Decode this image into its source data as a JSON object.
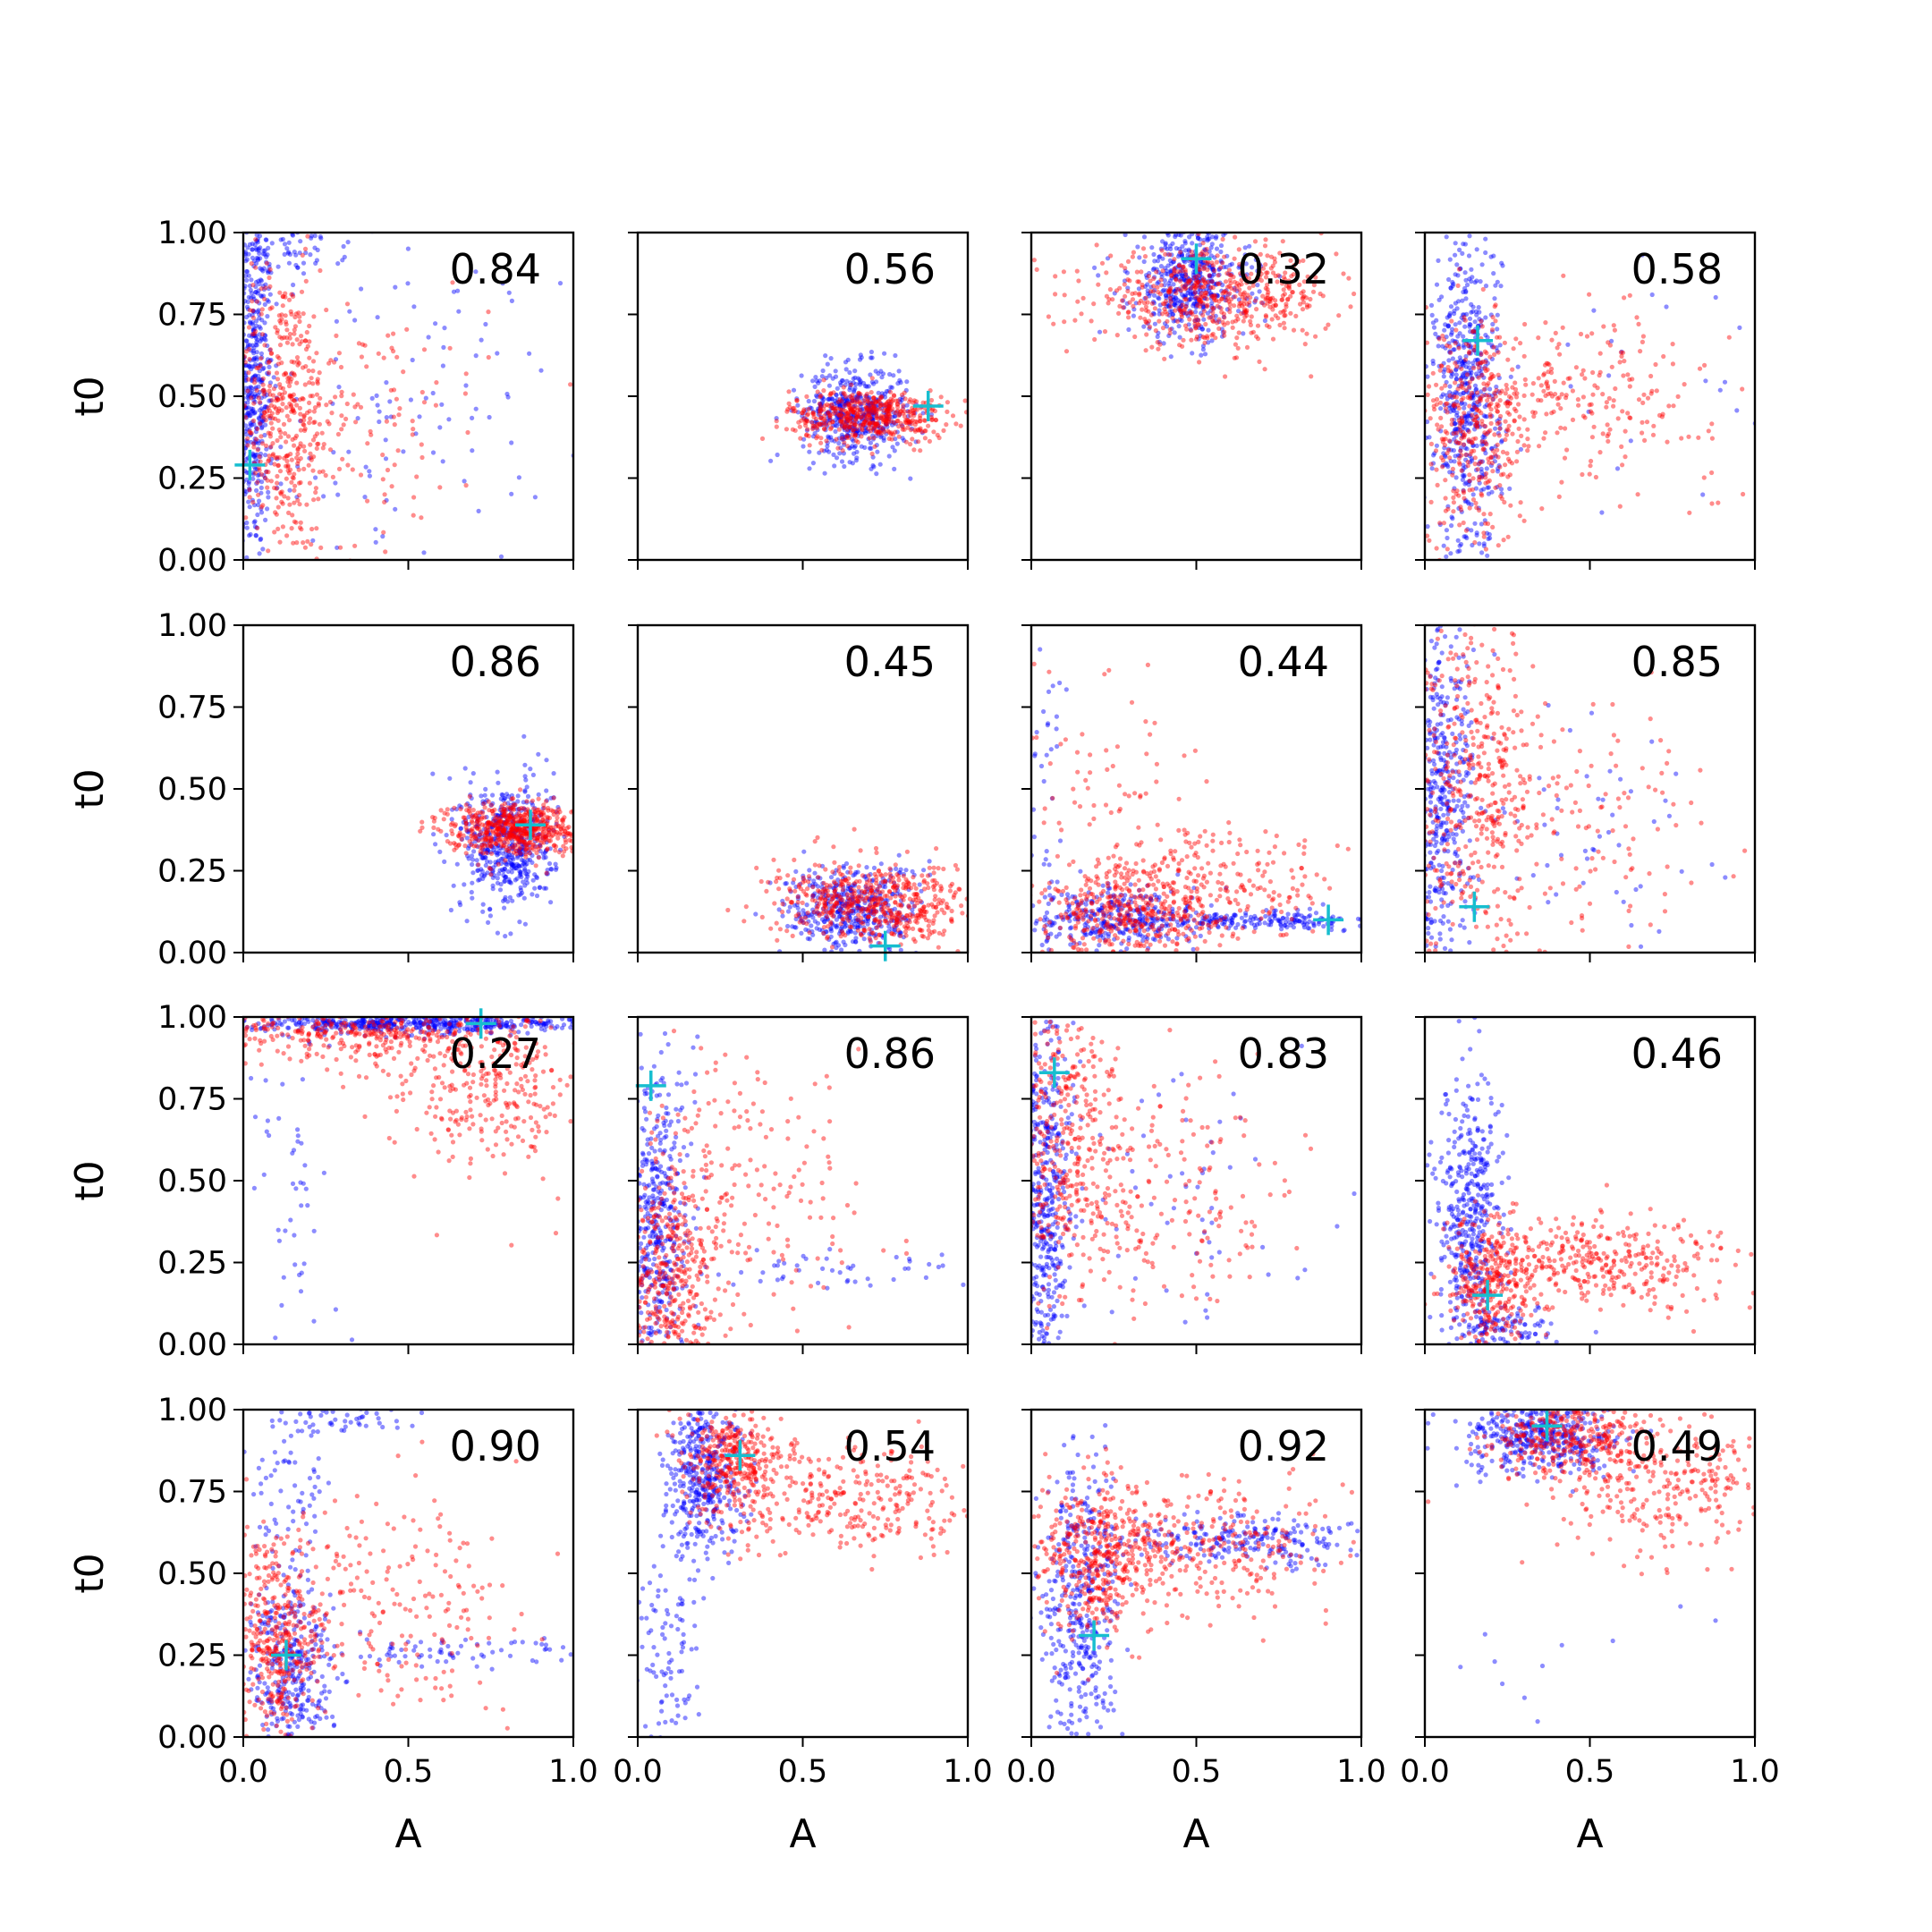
{
  "figure": {
    "xlabel": "A",
    "ylabel": "t0",
    "xticks": [
      "0.0",
      "0.5",
      "1.0"
    ],
    "yticks": [
      "0.00",
      "0.25",
      "0.50",
      "0.75",
      "1.00"
    ]
  },
  "colors": {
    "series_a": "#0000ff",
    "series_b": "#ff0000",
    "marker": "#17becf"
  },
  "chart_data": [
    {
      "type": "scatter",
      "row": 0,
      "col": 0,
      "label": "0.84",
      "xlim": [
        0,
        1
      ],
      "ylim": [
        0,
        1
      ],
      "marker": {
        "x": 0.02,
        "y": 0.29
      },
      "blue": [
        {
          "cx": 0.03,
          "cy": 0.55,
          "sx": 0.03,
          "sy": 0.28,
          "n": 500
        },
        {
          "cx": 0.15,
          "cy": 0.95,
          "sx": 0.08,
          "sy": 0.04,
          "n": 60
        },
        {
          "cx": 0.45,
          "cy": 0.45,
          "sx": 0.25,
          "sy": 0.25,
          "n": 120
        }
      ],
      "red": [
        {
          "cx": 0.12,
          "cy": 0.45,
          "sx": 0.08,
          "sy": 0.22,
          "n": 450
        },
        {
          "cx": 0.35,
          "cy": 0.45,
          "sx": 0.2,
          "sy": 0.2,
          "n": 120
        }
      ]
    },
    {
      "type": "scatter",
      "row": 0,
      "col": 1,
      "label": "0.56",
      "xlim": [
        0,
        1
      ],
      "ylim": [
        0,
        1
      ],
      "marker": {
        "x": 0.88,
        "y": 0.47
      },
      "blue": [
        {
          "cx": 0.66,
          "cy": 0.45,
          "sx": 0.08,
          "sy": 0.07,
          "n": 500
        }
      ],
      "red": [
        {
          "cx": 0.7,
          "cy": 0.44,
          "sx": 0.12,
          "sy": 0.04,
          "n": 500
        }
      ]
    },
    {
      "type": "scatter",
      "row": 0,
      "col": 2,
      "label": "0.32",
      "xlim": [
        0,
        1
      ],
      "ylim": [
        0,
        1
      ],
      "marker": {
        "x": 0.5,
        "y": 0.92
      },
      "blue": [
        {
          "cx": 0.48,
          "cy": 0.85,
          "sx": 0.09,
          "sy": 0.09,
          "n": 500
        }
      ],
      "red": [
        {
          "cx": 0.55,
          "cy": 0.8,
          "sx": 0.18,
          "sy": 0.07,
          "n": 550
        }
      ]
    },
    {
      "type": "scatter",
      "row": 0,
      "col": 3,
      "label": "0.58",
      "xlim": [
        0,
        1
      ],
      "ylim": [
        0,
        1
      ],
      "marker": {
        "x": 0.16,
        "y": 0.67
      },
      "blue": [
        {
          "cx": 0.13,
          "cy": 0.5,
          "sx": 0.05,
          "sy": 0.25,
          "n": 550
        },
        {
          "cx": 0.6,
          "cy": 0.5,
          "sx": 0.25,
          "sy": 0.2,
          "n": 25
        }
      ],
      "red": [
        {
          "cx": 0.15,
          "cy": 0.4,
          "sx": 0.08,
          "sy": 0.18,
          "n": 350
        },
        {
          "cx": 0.45,
          "cy": 0.5,
          "sx": 0.22,
          "sy": 0.12,
          "n": 250
        }
      ]
    },
    {
      "type": "scatter",
      "row": 1,
      "col": 0,
      "label": "0.86",
      "xlim": [
        0,
        1
      ],
      "ylim": [
        0,
        1
      ],
      "marker": {
        "x": 0.87,
        "y": 0.39
      },
      "blue": [
        {
          "cx": 0.8,
          "cy": 0.33,
          "sx": 0.07,
          "sy": 0.1,
          "n": 500
        }
      ],
      "red": [
        {
          "cx": 0.82,
          "cy": 0.38,
          "sx": 0.1,
          "sy": 0.04,
          "n": 600
        }
      ]
    },
    {
      "type": "scatter",
      "row": 1,
      "col": 1,
      "label": "0.45",
      "xlim": [
        0,
        1
      ],
      "ylim": [
        0,
        1
      ],
      "marker": {
        "x": 0.75,
        "y": 0.02
      },
      "blue": [
        {
          "cx": 0.65,
          "cy": 0.13,
          "sx": 0.1,
          "sy": 0.07,
          "n": 450
        }
      ],
      "red": [
        {
          "cx": 0.72,
          "cy": 0.15,
          "sx": 0.15,
          "sy": 0.06,
          "n": 550
        }
      ]
    },
    {
      "type": "scatter",
      "row": 1,
      "col": 2,
      "label": "0.44",
      "xlim": [
        0,
        1
      ],
      "ylim": [
        0,
        1
      ],
      "marker": {
        "x": 0.9,
        "y": 0.1
      },
      "blue": [
        {
          "cx": 0.25,
          "cy": 0.1,
          "sx": 0.12,
          "sy": 0.05,
          "n": 300
        },
        {
          "cx": 0.7,
          "cy": 0.1,
          "sx": 0.2,
          "sy": 0.015,
          "n": 220
        },
        {
          "cx": 0.05,
          "cy": 0.5,
          "sx": 0.04,
          "sy": 0.3,
          "n": 40
        }
      ],
      "red": [
        {
          "cx": 0.3,
          "cy": 0.12,
          "sx": 0.15,
          "sy": 0.07,
          "n": 350
        },
        {
          "cx": 0.55,
          "cy": 0.2,
          "sx": 0.2,
          "sy": 0.09,
          "n": 250
        },
        {
          "cx": 0.2,
          "cy": 0.5,
          "sx": 0.15,
          "sy": 0.2,
          "n": 80
        }
      ]
    },
    {
      "type": "scatter",
      "row": 1,
      "col": 3,
      "label": "0.85",
      "xlim": [
        0,
        1
      ],
      "ylim": [
        0,
        1
      ],
      "marker": {
        "x": 0.15,
        "y": 0.14
      },
      "blue": [
        {
          "cx": 0.05,
          "cy": 0.45,
          "sx": 0.05,
          "sy": 0.27,
          "n": 450
        },
        {
          "cx": 0.5,
          "cy": 0.35,
          "sx": 0.25,
          "sy": 0.2,
          "n": 60
        }
      ],
      "red": [
        {
          "cx": 0.15,
          "cy": 0.5,
          "sx": 0.1,
          "sy": 0.25,
          "n": 400
        },
        {
          "cx": 0.45,
          "cy": 0.4,
          "sx": 0.2,
          "sy": 0.2,
          "n": 150
        }
      ]
    },
    {
      "type": "scatter",
      "row": 2,
      "col": 0,
      "label": "0.27",
      "xlim": [
        0,
        1
      ],
      "ylim": [
        0,
        1
      ],
      "marker": {
        "x": 0.72,
        "y": 0.98
      },
      "blue": [
        {
          "cx": 0.55,
          "cy": 0.98,
          "sx": 0.3,
          "sy": 0.015,
          "n": 550
        },
        {
          "cx": 0.15,
          "cy": 0.45,
          "sx": 0.07,
          "sy": 0.3,
          "n": 60
        }
      ],
      "red": [
        {
          "cx": 0.4,
          "cy": 0.95,
          "sx": 0.25,
          "sy": 0.04,
          "n": 350
        },
        {
          "cx": 0.75,
          "cy": 0.78,
          "sx": 0.15,
          "sy": 0.12,
          "n": 280
        }
      ]
    },
    {
      "type": "scatter",
      "row": 2,
      "col": 1,
      "label": "0.86",
      "xlim": [
        0,
        1
      ],
      "ylim": [
        0,
        1
      ],
      "marker": {
        "x": 0.04,
        "y": 0.79
      },
      "blue": [
        {
          "cx": 0.06,
          "cy": 0.35,
          "sx": 0.05,
          "sy": 0.25,
          "n": 450
        },
        {
          "cx": 0.6,
          "cy": 0.23,
          "sx": 0.25,
          "sy": 0.03,
          "n": 50
        }
      ],
      "red": [
        {
          "cx": 0.1,
          "cy": 0.2,
          "sx": 0.08,
          "sy": 0.15,
          "n": 400
        },
        {
          "cx": 0.3,
          "cy": 0.5,
          "sx": 0.2,
          "sy": 0.25,
          "n": 200
        }
      ]
    },
    {
      "type": "scatter",
      "row": 2,
      "col": 2,
      "label": "0.83",
      "xlim": [
        0,
        1
      ],
      "ylim": [
        0,
        1
      ],
      "marker": {
        "x": 0.07,
        "y": 0.83
      },
      "blue": [
        {
          "cx": 0.04,
          "cy": 0.45,
          "sx": 0.04,
          "sy": 0.3,
          "n": 500
        },
        {
          "cx": 0.45,
          "cy": 0.4,
          "sx": 0.25,
          "sy": 0.25,
          "n": 70
        }
      ],
      "red": [
        {
          "cx": 0.1,
          "cy": 0.6,
          "sx": 0.08,
          "sy": 0.25,
          "n": 350
        },
        {
          "cx": 0.35,
          "cy": 0.45,
          "sx": 0.2,
          "sy": 0.22,
          "n": 220
        }
      ]
    },
    {
      "type": "scatter",
      "row": 2,
      "col": 3,
      "label": "0.46",
      "xlim": [
        0,
        1
      ],
      "ylim": [
        0,
        1
      ],
      "marker": {
        "x": 0.19,
        "y": 0.15
      },
      "blue": [
        {
          "cx": 0.14,
          "cy": 0.35,
          "sx": 0.05,
          "sy": 0.22,
          "n": 450
        },
        {
          "cx": 0.25,
          "cy": 0.05,
          "sx": 0.08,
          "sy": 0.04,
          "n": 100
        }
      ],
      "red": [
        {
          "cx": 0.2,
          "cy": 0.18,
          "sx": 0.07,
          "sy": 0.1,
          "n": 300
        },
        {
          "cx": 0.55,
          "cy": 0.25,
          "sx": 0.2,
          "sy": 0.07,
          "n": 350
        }
      ]
    },
    {
      "type": "scatter",
      "row": 3,
      "col": 0,
      "label": "0.90",
      "xlim": [
        0,
        1
      ],
      "ylim": [
        0,
        1
      ],
      "marker": {
        "x": 0.13,
        "y": 0.25
      },
      "blue": [
        {
          "cx": 0.15,
          "cy": 0.2,
          "sx": 0.07,
          "sy": 0.15,
          "n": 350
        },
        {
          "cx": 0.15,
          "cy": 0.8,
          "sx": 0.05,
          "sy": 0.15,
          "n": 80
        },
        {
          "cx": 0.6,
          "cy": 0.26,
          "sx": 0.25,
          "sy": 0.02,
          "n": 80
        },
        {
          "cx": 0.3,
          "cy": 0.97,
          "sx": 0.12,
          "sy": 0.02,
          "n": 40
        }
      ],
      "red": [
        {
          "cx": 0.1,
          "cy": 0.3,
          "sx": 0.07,
          "sy": 0.15,
          "n": 400
        },
        {
          "cx": 0.45,
          "cy": 0.4,
          "sx": 0.2,
          "sy": 0.18,
          "n": 200
        }
      ]
    },
    {
      "type": "scatter",
      "row": 3,
      "col": 1,
      "label": "0.54",
      "xlim": [
        0,
        1
      ],
      "ylim": [
        0,
        1
      ],
      "marker": {
        "x": 0.31,
        "y": 0.86
      },
      "blue": [
        {
          "cx": 0.2,
          "cy": 0.8,
          "sx": 0.06,
          "sy": 0.12,
          "n": 400
        },
        {
          "cx": 0.1,
          "cy": 0.3,
          "sx": 0.05,
          "sy": 0.2,
          "n": 100
        }
      ],
      "red": [
        {
          "cx": 0.3,
          "cy": 0.85,
          "sx": 0.08,
          "sy": 0.08,
          "n": 350
        },
        {
          "cx": 0.65,
          "cy": 0.72,
          "sx": 0.2,
          "sy": 0.08,
          "n": 300
        }
      ]
    },
    {
      "type": "scatter",
      "row": 3,
      "col": 2,
      "label": "0.92",
      "xlim": [
        0,
        1
      ],
      "ylim": [
        0,
        1
      ],
      "marker": {
        "x": 0.19,
        "y": 0.31
      },
      "blue": [
        {
          "cx": 0.15,
          "cy": 0.4,
          "sx": 0.06,
          "sy": 0.25,
          "n": 400
        },
        {
          "cx": 0.6,
          "cy": 0.6,
          "sx": 0.22,
          "sy": 0.04,
          "n": 250
        }
      ],
      "red": [
        {
          "cx": 0.2,
          "cy": 0.55,
          "sx": 0.1,
          "sy": 0.12,
          "n": 400
        },
        {
          "cx": 0.5,
          "cy": 0.58,
          "sx": 0.2,
          "sy": 0.1,
          "n": 300
        }
      ]
    },
    {
      "type": "scatter",
      "row": 3,
      "col": 3,
      "label": "0.49",
      "xlim": [
        0,
        1
      ],
      "ylim": [
        0,
        1
      ],
      "marker": {
        "x": 0.37,
        "y": 0.95
      },
      "blue": [
        {
          "cx": 0.35,
          "cy": 0.92,
          "sx": 0.12,
          "sy": 0.06,
          "n": 450
        },
        {
          "cx": 0.4,
          "cy": 0.2,
          "sx": 0.3,
          "sy": 0.15,
          "n": 15
        }
      ],
      "red": [
        {
          "cx": 0.45,
          "cy": 0.9,
          "sx": 0.12,
          "sy": 0.06,
          "n": 350
        },
        {
          "cx": 0.75,
          "cy": 0.75,
          "sx": 0.18,
          "sy": 0.1,
          "n": 250
        }
      ]
    }
  ]
}
